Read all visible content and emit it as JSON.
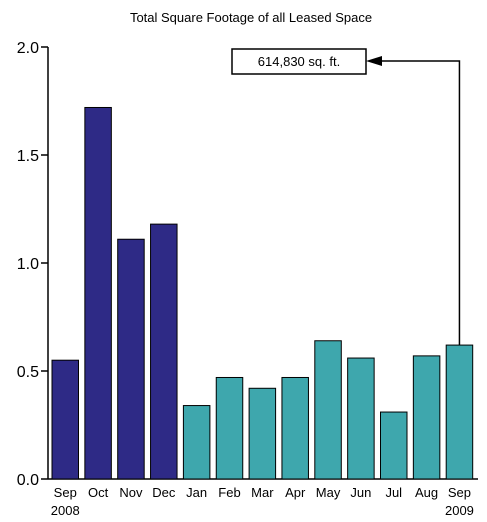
{
  "chart_data": {
    "type": "bar",
    "title": "Total Square Footage of all Leased Space",
    "xlabel": "",
    "ylabel": "",
    "ylim": [
      0,
      2.0
    ],
    "yticks": [
      "0.0",
      "0.5",
      "1.0",
      "1.5",
      "2.0"
    ],
    "categories": [
      "Sep",
      "Oct",
      "Nov",
      "Dec",
      "Jan",
      "Feb",
      "Mar",
      "Apr",
      "May",
      "Jun",
      "Jul",
      "Aug",
      "Sep"
    ],
    "year_labels": [
      {
        "category_index": 0,
        "text": "2008"
      },
      {
        "category_index": 12,
        "text": "2009"
      }
    ],
    "values": [
      0.55,
      1.72,
      1.11,
      1.18,
      0.34,
      0.47,
      0.42,
      0.47,
      0.64,
      0.56,
      0.31,
      0.57,
      0.62
    ],
    "bar_groups": [
      {
        "from_index": 0,
        "to_index": 3,
        "color": "#2e2a86"
      },
      {
        "from_index": 4,
        "to_index": 12,
        "color": "#3ea7ad"
      }
    ],
    "annotation": {
      "text": "614,830 sq. ft.",
      "points_to_index": 12
    },
    "grid": false,
    "legend": "none"
  }
}
